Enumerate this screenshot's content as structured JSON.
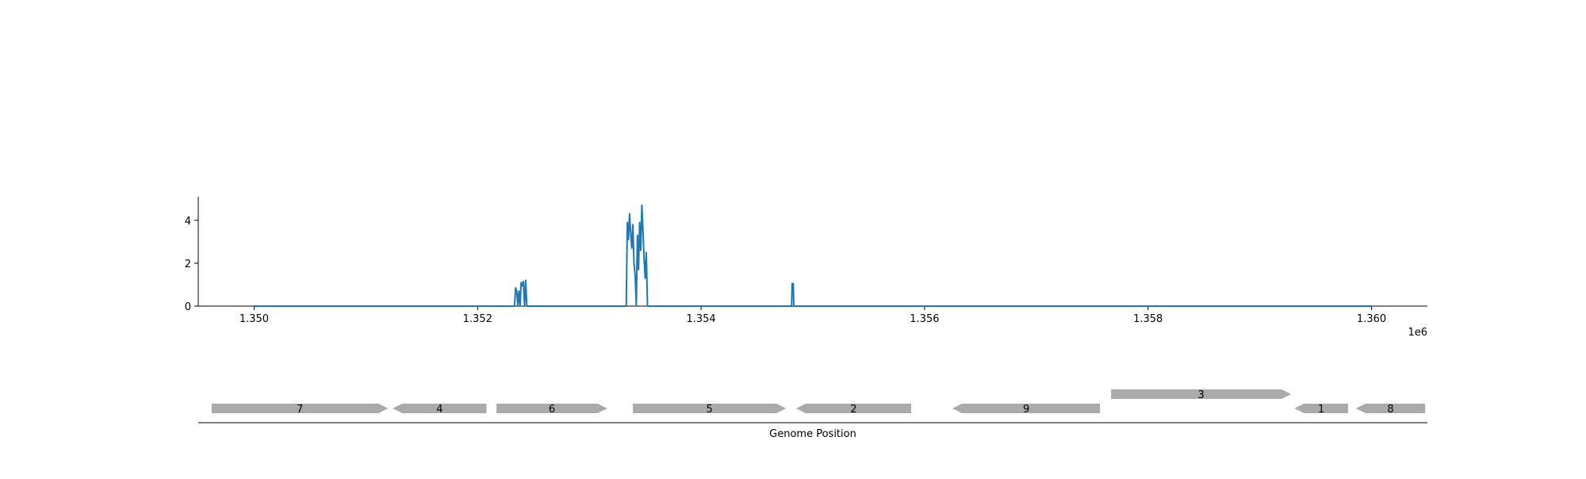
{
  "chart_data": [
    {
      "type": "line",
      "title": "",
      "xlabel": "",
      "ylabel": "",
      "xlim": [
        1349500,
        1360500
      ],
      "ylim": [
        0,
        5.1
      ],
      "x_ticks": [
        1350000,
        1352000,
        1354000,
        1356000,
        1358000,
        1360000
      ],
      "x_tick_labels": [
        "1.350",
        "1.352",
        "1.354",
        "1.356",
        "1.358",
        "1.360"
      ],
      "y_ticks": [
        0,
        2,
        4
      ],
      "y_tick_labels": [
        "0",
        "2",
        "4"
      ],
      "offset_label": "1e6",
      "color": "#1f77b4",
      "series": [
        {
          "x": [
            1350000,
            1352330,
            1352340,
            1352350,
            1352360,
            1352370,
            1352380,
            1352390,
            1352400,
            1352410,
            1352420,
            1352430,
            1352440,
            1352450,
            1353330,
            1353340,
            1353350,
            1353360,
            1353370,
            1353380,
            1353390,
            1353400,
            1353410,
            1353420,
            1353430,
            1353440,
            1353450,
            1353460,
            1353470,
            1353480,
            1353490,
            1353500,
            1353510,
            1353520,
            1353530,
            1353540,
            1353550,
            1354810,
            1354815,
            1354825,
            1354830,
            1360000
          ],
          "y": [
            0,
            0,
            0.85,
            0.7,
            0,
            0.7,
            0,
            1.1,
            0.95,
            1.15,
            0,
            1.2,
            0,
            0,
            0,
            3.9,
            3.1,
            4.3,
            3.4,
            2.7,
            3.8,
            2.0,
            1.4,
            0,
            3.3,
            1.7,
            3.9,
            2.6,
            4.7,
            3.5,
            2.2,
            1.3,
            2.5,
            0,
            0,
            0,
            0,
            0,
            1.05,
            1.05,
            0,
            0
          ]
        }
      ]
    },
    {
      "type": "gene-track",
      "xlabel": "Genome Position",
      "xlim": [
        1349500,
        1360500
      ],
      "genes": [
        {
          "label": "7",
          "start": 1349620,
          "end": 1351200,
          "strand": "+",
          "row": 0
        },
        {
          "label": "4",
          "start": 1351240,
          "end": 1352080,
          "strand": "-",
          "row": 0
        },
        {
          "label": "6",
          "start": 1352170,
          "end": 1353160,
          "strand": "+",
          "row": 0
        },
        {
          "label": "5",
          "start": 1353390,
          "end": 1354760,
          "strand": "+",
          "row": 0
        },
        {
          "label": "2",
          "start": 1354850,
          "end": 1355880,
          "strand": "-",
          "row": 0
        },
        {
          "label": "9",
          "start": 1356250,
          "end": 1357570,
          "strand": "-",
          "row": 0
        },
        {
          "label": "3",
          "start": 1357670,
          "end": 1359280,
          "strand": "+",
          "row": 1
        },
        {
          "label": "1",
          "start": 1359310,
          "end": 1359790,
          "strand": "-",
          "row": 0
        },
        {
          "label": "8",
          "start": 1359860,
          "end": 1360480,
          "strand": "-",
          "row": 0
        }
      ]
    }
  ]
}
